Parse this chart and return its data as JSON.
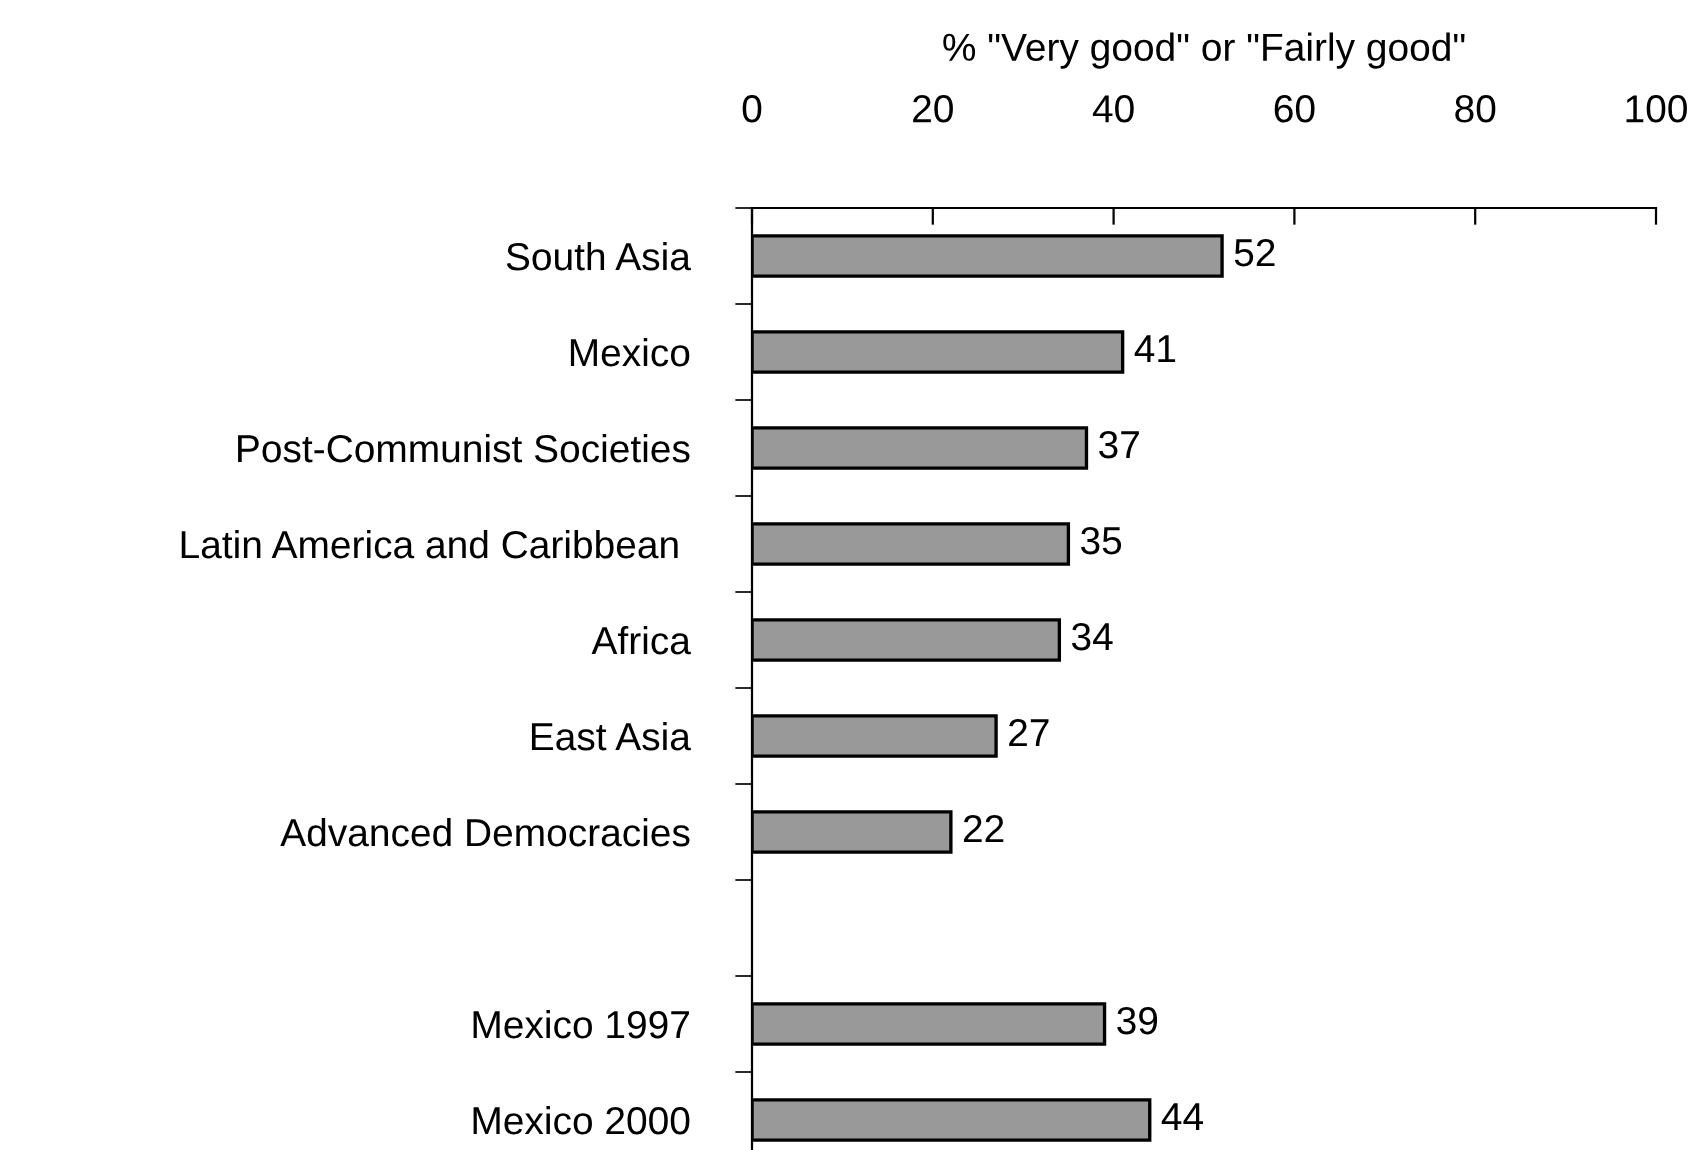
{
  "chart_data": {
    "type": "bar",
    "orientation": "horizontal",
    "xlabel": "% \"Very good\" or \"Fairly good\"",
    "categories": [
      "South Asia",
      "Mexico",
      "Post-Communist Societies",
      "Latin America and Caribbean ",
      "Africa",
      "East Asia",
      "Advanced Democracies",
      null,
      "Mexico 1997",
      "Mexico 2000"
    ],
    "values": [
      52,
      41,
      37,
      35,
      34,
      27,
      22,
      null,
      39,
      44
    ],
    "color": "#999999",
    "data_labels": true,
    "xlim": [
      0,
      100
    ],
    "xticks": [
      0,
      20,
      40,
      60,
      80,
      100
    ],
    "grid": false,
    "legend": false
  }
}
